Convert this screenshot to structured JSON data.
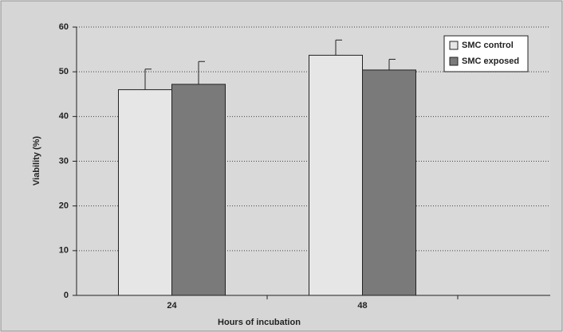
{
  "chart_data": {
    "type": "bar",
    "x_label": "Hours of incubation",
    "y_label": "Viability (%)",
    "categories": [
      "24",
      "48"
    ],
    "series": [
      {
        "name": "SMC control",
        "color": "#e6e6e6",
        "values": [
          46,
          53.7
        ],
        "errors": [
          4.6,
          3.4
        ]
      },
      {
        "name": "SMC exposed",
        "color": "#7a7a7a",
        "values": [
          47.2,
          50.4
        ],
        "errors": [
          5.1,
          2.4
        ]
      }
    ],
    "ylim": [
      0,
      60
    ],
    "yticks": [
      0,
      10,
      20,
      30,
      40,
      50,
      60
    ],
    "grid": true,
    "legend": "top-right"
  }
}
